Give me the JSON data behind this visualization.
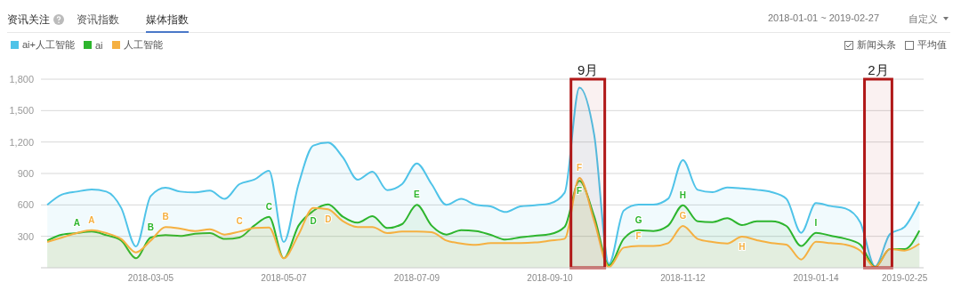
{
  "chart_data": {
    "type": "area",
    "x": [
      "2018-01-15",
      "2018-01-22",
      "2018-01-29",
      "2018-02-05",
      "2018-02-12",
      "2018-02-19",
      "2018-02-26",
      "2018-03-05",
      "2018-03-12",
      "2018-03-19",
      "2018-03-26",
      "2018-04-02",
      "2018-04-09",
      "2018-04-16",
      "2018-04-23",
      "2018-04-30",
      "2018-05-07",
      "2018-05-14",
      "2018-05-21",
      "2018-05-28",
      "2018-06-04",
      "2018-06-11",
      "2018-06-18",
      "2018-06-25",
      "2018-07-02",
      "2018-07-09",
      "2018-07-16",
      "2018-07-23",
      "2018-07-30",
      "2018-08-06",
      "2018-08-13",
      "2018-08-20",
      "2018-08-27",
      "2018-09-03",
      "2018-09-10",
      "2018-09-17",
      "2018-09-24",
      "2018-10-01",
      "2018-10-08",
      "2018-10-15",
      "2018-10-22",
      "2018-10-29",
      "2018-11-05",
      "2018-11-12",
      "2018-11-19",
      "2018-11-26",
      "2018-12-03",
      "2018-12-10",
      "2018-12-17",
      "2018-12-24",
      "2018-12-31",
      "2019-01-07",
      "2019-01-14",
      "2019-01-21",
      "2019-01-28",
      "2019-02-04",
      "2019-02-11",
      "2019-02-18",
      "2019-02-25",
      "2019-03-04"
    ],
    "series": [
      {
        "name": "ai+人工智能",
        "color": "#4fc3e8",
        "values": [
          600,
          699,
          727,
          747,
          727,
          572,
          204,
          685,
          764,
          727,
          719,
          736,
          657,
          798,
          841,
          925,
          246,
          798,
          1166,
          1194,
          1053,
          841,
          917,
          741,
          798,
          996,
          798,
          600,
          657,
          600,
          586,
          532,
          586,
          597,
          614,
          716,
          1720,
          1268,
          37,
          546,
          603,
          603,
          659,
          1027,
          744,
          722,
          767,
          758,
          744,
          722,
          659,
          334,
          617,
          589,
          566,
          433,
          12,
          320,
          391,
          631
        ]
      },
      {
        "name": "ai",
        "color": "#2db52d",
        "values": [
          260,
          317,
          331,
          345,
          311,
          260,
          91,
          289,
          311,
          303,
          325,
          331,
          275,
          289,
          402,
          487,
          91,
          402,
          543,
          605,
          487,
          430,
          492,
          379,
          416,
          600,
          402,
          317,
          359,
          351,
          314,
          269,
          291,
          306,
          320,
          391,
          829,
          490,
          23,
          277,
          359,
          351,
          402,
          597,
          444,
          436,
          473,
          408,
          444,
          444,
          399,
          207,
          334,
          306,
          277,
          221,
          6,
          178,
          178,
          354
        ]
      },
      {
        "name": "人工智能",
        "color": "#f5b041",
        "values": [
          246,
          289,
          331,
          359,
          331,
          275,
          147,
          260,
          388,
          374,
          351,
          368,
          317,
          345,
          379,
          385,
          91,
          317,
          572,
          558,
          444,
          388,
          388,
          331,
          345,
          345,
          340,
          260,
          232,
          218,
          235,
          235,
          235,
          241,
          258,
          277,
          857,
          447,
          6,
          192,
          207,
          207,
          235,
          399,
          275,
          246,
          232,
          297,
          263,
          235,
          221,
          79,
          249,
          235,
          221,
          164,
          4,
          178,
          164,
          229
        ]
      }
    ],
    "xlim": [
      "2018-01-12",
      "2019-03-06"
    ],
    "xticks": [
      "2018-03-05",
      "2018-05-07",
      "2018-07-09",
      "2018-09-10",
      "2018-11-12",
      "2019-01-14",
      "2019-02-25"
    ],
    "ylim": [
      0,
      1800
    ],
    "yticks": [
      {
        "value": 300,
        "label": "300"
      },
      {
        "value": 600,
        "label": "600"
      },
      {
        "value": 900,
        "label": "900"
      },
      {
        "value": 1200,
        "label": "1,200"
      },
      {
        "value": 1500,
        "label": "1,500"
      },
      {
        "value": 1800,
        "label": "1,800"
      }
    ],
    "grid": "y",
    "legend": "top left",
    "marker": "none",
    "line_style": "solid",
    "bands": [
      {
        "axis": "x",
        "from": "2018-09-20",
        "to": "2018-10-06",
        "label": "9月",
        "color": "#b01818"
      },
      {
        "axis": "x",
        "from": "2019-02-06",
        "to": "2019-02-19",
        "label": "2月",
        "color": "#b01818"
      }
    ],
    "annotations": [
      "资讯关注",
      "资讯指数",
      "媒体指数",
      "2018-01-01 ~ 2019-02-27",
      "自定义",
      "新闻头条",
      "平均值",
      {
        "text": "A",
        "x": "2018-01-29",
        "y": 331
      },
      {
        "text": "A",
        "x": "2018-02-05",
        "y": 359
      },
      {
        "text": "B",
        "x": "2018-03-05",
        "y": 289
      },
      {
        "text": "B",
        "x": "2018-03-12",
        "y": 388
      },
      {
        "text": "C",
        "x": "2018-04-16",
        "y": 345
      },
      {
        "text": "C",
        "x": "2018-04-30",
        "y": 487
      },
      {
        "text": "D",
        "x": "2018-05-21",
        "y": 543
      },
      {
        "text": "D",
        "x": "2018-05-28",
        "y": 558
      },
      {
        "text": "E",
        "x": "2018-07-09",
        "y": 600
      },
      {
        "text": "F",
        "x": "2018-09-24",
        "y": 857
      },
      {
        "text": "F",
        "x": "2018-09-24",
        "y": 829
      },
      {
        "text": "G",
        "x": "2018-10-22",
        "y": 359
      },
      {
        "text": "F",
        "x": "2018-10-22",
        "y": 207
      },
      {
        "text": "H",
        "x": "2018-11-12",
        "y": 597
      },
      {
        "text": "G",
        "x": "2018-11-12",
        "y": 399
      },
      {
        "text": "H",
        "x": "2018-12-10",
        "y": 297
      },
      {
        "text": "I",
        "x": "2019-01-14",
        "y": 334
      }
    ]
  }
}
